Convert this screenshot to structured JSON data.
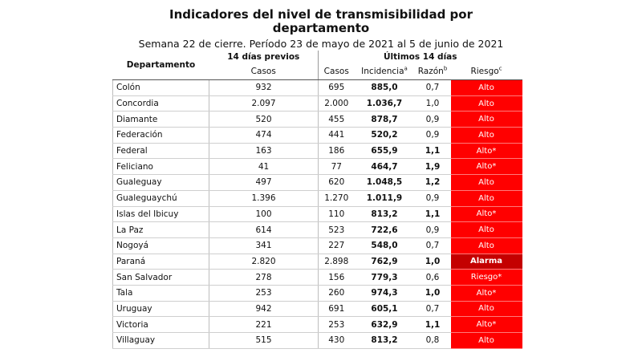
{
  "title_line1": "Indicadores del nivel de transmisibilidad por",
  "title_line2": "departamento",
  "subtitle": "Semana 22 de cierre. Período 23 de mayo de 2021 al 5 de junio de 2021",
  "headers": {
    "departamento": "Departamento",
    "previos_group": "14 días previos",
    "ultimos_group": "Últimos 14 días",
    "casos_prev": "Casos",
    "casos": "Casos",
    "incidencia": "Incidencia",
    "incidencia_sup": "a",
    "razon": "Razón",
    "razon_sup": "b",
    "riesgo": "Riesgo",
    "riesgo_sup": "c"
  },
  "colors": {
    "riesgo_alto": "#ff0000",
    "riesgo_alarma": "#c40000"
  },
  "rows": [
    {
      "dept": "Colón",
      "casos_prev": "932",
      "casos": "695",
      "incidencia": "885,0",
      "razon": "0,7",
      "riesgo": "Alto"
    },
    {
      "dept": "Concordia",
      "casos_prev": "2.097",
      "casos": "2.000",
      "incidencia": "1.036,7",
      "razon": "1,0",
      "riesgo": "Alto"
    },
    {
      "dept": "Diamante",
      "casos_prev": "520",
      "casos": "455",
      "incidencia": "878,7",
      "razon": "0,9",
      "riesgo": "Alto"
    },
    {
      "dept": "Federación",
      "casos_prev": "474",
      "casos": "441",
      "incidencia": "520,2",
      "razon": "0,9",
      "riesgo": "Alto"
    },
    {
      "dept": "Federal",
      "casos_prev": "163",
      "casos": "186",
      "incidencia": "655,9",
      "razon": "1,1",
      "riesgo": "Alto*"
    },
    {
      "dept": "Feliciano",
      "casos_prev": "41",
      "casos": "77",
      "incidencia": "464,7",
      "razon": "1,9",
      "riesgo": "Alto*"
    },
    {
      "dept": "Gualeguay",
      "casos_prev": "497",
      "casos": "620",
      "incidencia": "1.048,5",
      "razon": "1,2",
      "riesgo": "Alto"
    },
    {
      "dept": "Gualeguaychú",
      "casos_prev": "1.396",
      "casos": "1.270",
      "incidencia": "1.011,9",
      "razon": "0,9",
      "riesgo": "Alto"
    },
    {
      "dept": "Islas del Ibicuy",
      "casos_prev": "100",
      "casos": "110",
      "incidencia": "813,2",
      "razon": "1,1",
      "riesgo": "Alto*"
    },
    {
      "dept": "La Paz",
      "casos_prev": "614",
      "casos": "523",
      "incidencia": "722,6",
      "razon": "0,9",
      "riesgo": "Alto"
    },
    {
      "dept": "Nogoyá",
      "casos_prev": "341",
      "casos": "227",
      "incidencia": "548,0",
      "razon": "0,7",
      "riesgo": "Alto"
    },
    {
      "dept": "Paraná",
      "casos_prev": "2.820",
      "casos": "2.898",
      "incidencia": "762,9",
      "razon": "1,0",
      "riesgo": "Alarma"
    },
    {
      "dept": "San Salvador",
      "casos_prev": "278",
      "casos": "156",
      "incidencia": "779,3",
      "razon": "0,6",
      "riesgo": "Riesgo*"
    },
    {
      "dept": "Tala",
      "casos_prev": "253",
      "casos": "260",
      "incidencia": "974,3",
      "razon": "1,0",
      "riesgo": "Alto*"
    },
    {
      "dept": "Uruguay",
      "casos_prev": "942",
      "casos": "691",
      "incidencia": "605,1",
      "razon": "0,7",
      "riesgo": "Alto"
    },
    {
      "dept": "Victoria",
      "casos_prev": "221",
      "casos": "253",
      "incidencia": "632,9",
      "razon": "1,1",
      "riesgo": "Alto*"
    },
    {
      "dept": "Villaguay",
      "casos_prev": "515",
      "casos": "430",
      "incidencia": "813,2",
      "razon": "0,8",
      "riesgo": "Alto"
    }
  ]
}
